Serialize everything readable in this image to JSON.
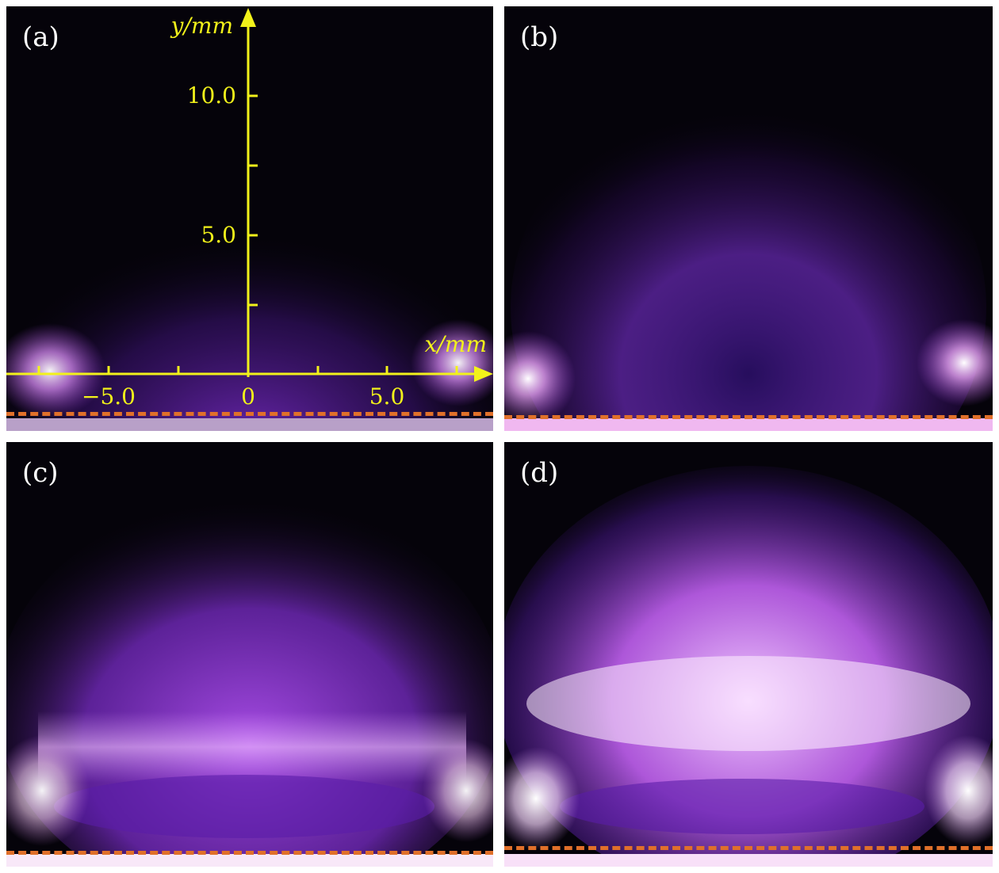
{
  "panels": [
    {
      "label": "(a)"
    },
    {
      "label": "(b)"
    },
    {
      "label": "(c)"
    },
    {
      "label": "(d)"
    }
  ],
  "axes": {
    "x_label": "x/mm",
    "y_label": "y/mm",
    "x_ticks": [
      "−5.0",
      "0",
      "5.0"
    ],
    "y_ticks": [
      "10.0",
      "5.0"
    ],
    "color": "#f2f21a"
  },
  "colors": {
    "background": "#05030a",
    "plasma": "#a040e0",
    "dashed_line": "#e0702a"
  }
}
